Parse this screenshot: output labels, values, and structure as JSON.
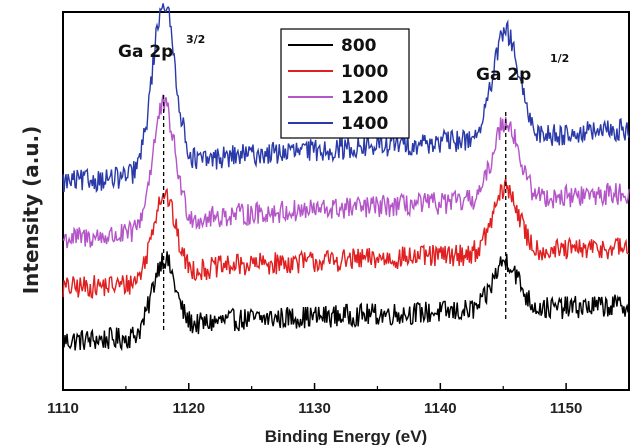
{
  "chart_data": {
    "type": "line",
    "xlabel": "Binding Energy (eV)",
    "ylabel": "Intensity (a.u.)",
    "xlim": [
      1110,
      1155
    ],
    "ylim": [
      0,
      100
    ],
    "x_ticks": [
      1110,
      1120,
      1130,
      1140,
      1150
    ],
    "grid": false,
    "legend_placement": "top-center",
    "series": [
      {
        "name": "800",
        "color": "#000000",
        "baseline": 13,
        "peak1": 20,
        "peak2": 13,
        "slope": 0.12
      },
      {
        "name": "1000",
        "color": "#e02020",
        "baseline": 27,
        "peak1": 23,
        "peak2": 17,
        "slope": 0.15
      },
      {
        "name": "1200",
        "color": "#b455c8",
        "baseline": 40,
        "peak1": 33,
        "peak2": 21,
        "slope": 0.18
      },
      {
        "name": "1400",
        "color": "#2a3aa8",
        "baseline": 55,
        "peak1": 45,
        "peak2": 28,
        "slope": 0.22
      }
    ],
    "peaks": [
      {
        "position": 1118,
        "label": "Ga 2p",
        "superscript": "3/2"
      },
      {
        "position": 1145.2,
        "label": "Ga 2p",
        "superscript": "1/2"
      }
    ]
  }
}
